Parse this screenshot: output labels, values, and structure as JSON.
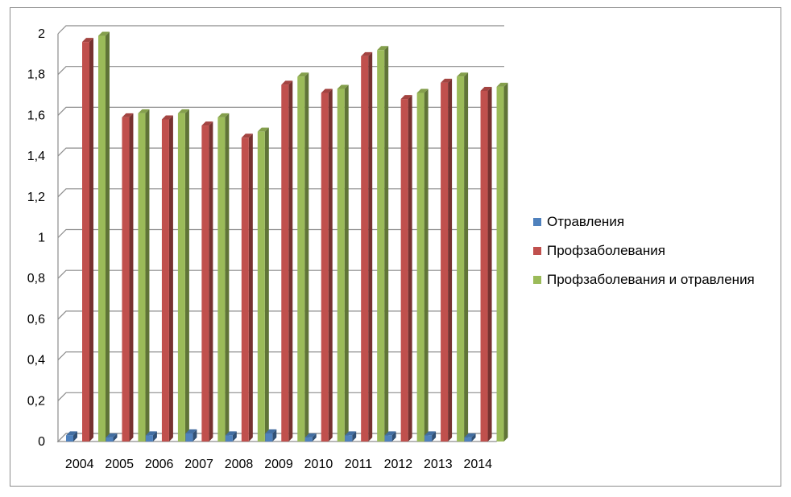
{
  "chart_data": {
    "type": "bar",
    "categories": [
      "2004",
      "2005",
      "2006",
      "2007",
      "2008",
      "2009",
      "2010",
      "2011",
      "2012",
      "2013",
      "2014"
    ],
    "series": [
      {
        "name": "Отравления",
        "color": "#4f81bd",
        "values": [
          0.03,
          0.02,
          0.03,
          0.04,
          0.03,
          0.04,
          0.02,
          0.03,
          0.03,
          0.03,
          0.02
        ]
      },
      {
        "name": "Профзаболевания",
        "color": "#c0504d",
        "values": [
          1.96,
          1.59,
          1.58,
          1.55,
          1.49,
          1.75,
          1.71,
          1.89,
          1.68,
          1.76,
          1.72
        ]
      },
      {
        "name": "Профзаболевания и отравления",
        "color": "#9bbb59",
        "values": [
          1.99,
          1.61,
          1.61,
          1.59,
          1.52,
          1.79,
          1.73,
          1.92,
          1.71,
          1.79,
          1.74
        ]
      }
    ],
    "ylim": [
      0,
      2
    ],
    "yticks": [
      "0",
      "0,2",
      "0,4",
      "0,6",
      "0,8",
      "1",
      "1,2",
      "1,4",
      "1,6",
      "1,8",
      "2"
    ],
    "grid": true,
    "legend_position": "right"
  }
}
